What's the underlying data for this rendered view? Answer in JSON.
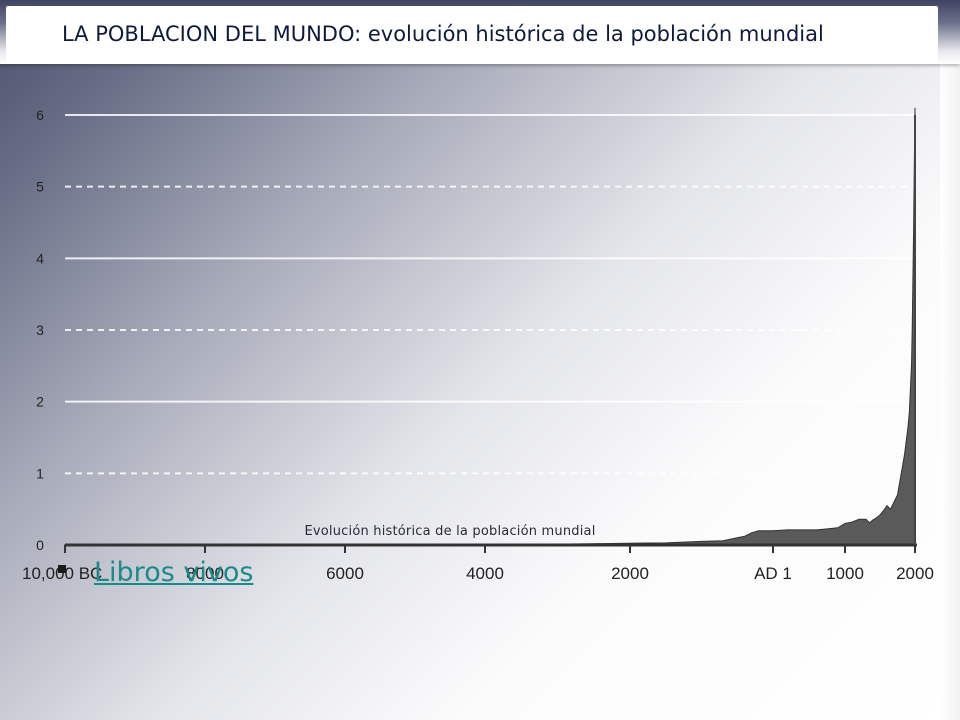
{
  "slide": {
    "title": "LA POBLACION DEL MUNDO: evolución histórica de la población mundial",
    "caption": "Evolución histórica de la población mundial",
    "link_label": "Libros vivos"
  },
  "chart_data": {
    "type": "area",
    "title": "",
    "xlabel": "",
    "ylabel": "",
    "x_tick_labels": [
      "10,000 BC",
      "8000",
      "6000",
      "4000",
      "2000",
      "AD 1",
      "1000",
      "2000"
    ],
    "x_tick_values": [
      -10000,
      -8000,
      -6000,
      -4000,
      -2000,
      1,
      1000,
      2000
    ],
    "y_ticks": [
      0,
      1,
      2,
      3,
      4,
      5,
      6
    ],
    "ylim": [
      0,
      6
    ],
    "xlim": [
      -10000,
      2000
    ],
    "grid": true,
    "colors": {
      "area": "#5a5a5a",
      "grid": "#ffffff",
      "axis": "#333333"
    },
    "series": [
      {
        "values_x": [
          -10000,
          -8000,
          -6000,
          -4000,
          -3000,
          -2000,
          -1500,
          -1000,
          -700,
          -500,
          -400,
          -300,
          -200,
          -100,
          1,
          200,
          400,
          500,
          600,
          700,
          800,
          900,
          1000,
          1100,
          1200,
          1250,
          1300,
          1350,
          1400,
          1450,
          1500,
          1550,
          1600,
          1650,
          1700,
          1750,
          1800,
          1850,
          1900,
          1920,
          1940,
          1950,
          1960,
          1970,
          1980,
          1990,
          2000
        ],
        "values_y": [
          0.004,
          0.005,
          0.006,
          0.008,
          0.012,
          0.025,
          0.03,
          0.05,
          0.06,
          0.1,
          0.12,
          0.17,
          0.2,
          0.2,
          0.2,
          0.21,
          0.21,
          0.21,
          0.21,
          0.22,
          0.23,
          0.24,
          0.3,
          0.32,
          0.36,
          0.36,
          0.36,
          0.31,
          0.35,
          0.38,
          0.42,
          0.48,
          0.55,
          0.5,
          0.6,
          0.7,
          0.98,
          1.26,
          1.65,
          1.86,
          2.3,
          2.5,
          3.0,
          3.7,
          4.4,
          5.3,
          6.1
        ]
      }
    ]
  }
}
